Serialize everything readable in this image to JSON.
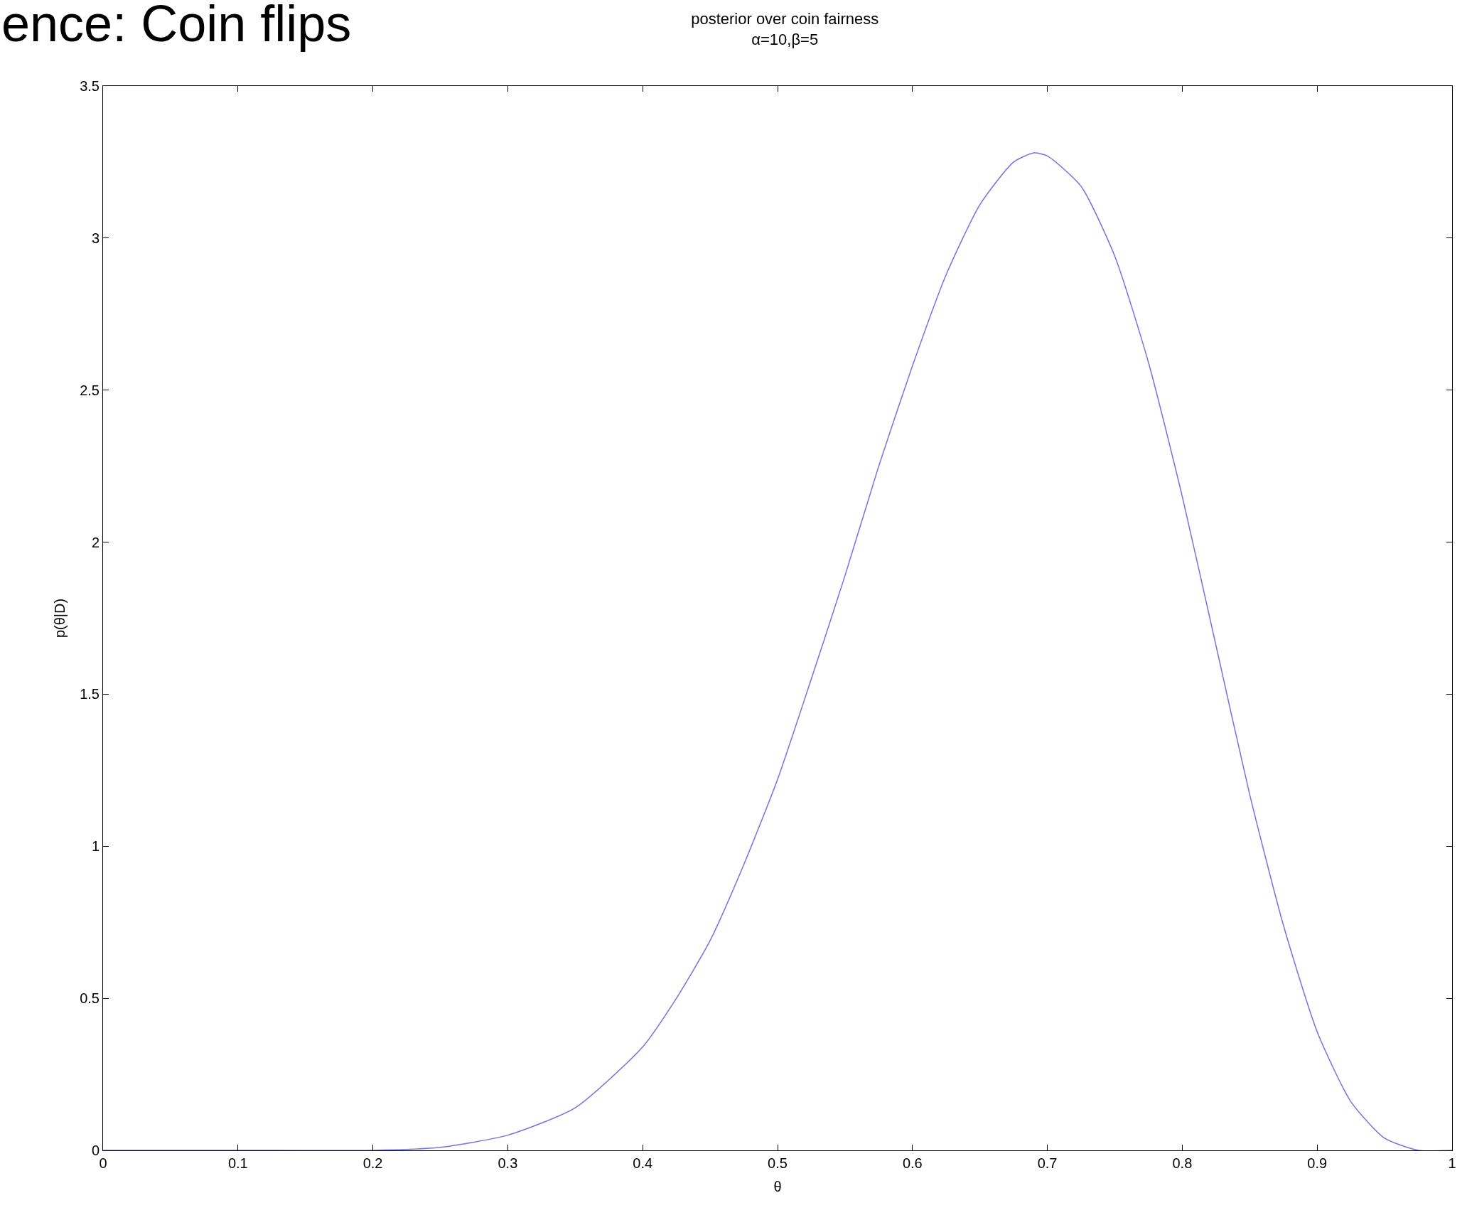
{
  "chart_data": {
    "type": "line",
    "title": "posterior over coin fairness",
    "subtitle": "α=10,β=5",
    "xlabel": "θ",
    "ylabel": "p(θ|D)",
    "annotations": [
      "ence: Coin flips"
    ],
    "x": [
      0,
      0.1,
      0.2,
      0.25,
      0.3,
      0.35,
      0.4,
      0.425,
      0.45,
      0.475,
      0.5,
      0.525,
      0.55,
      0.575,
      0.6,
      0.625,
      0.65,
      0.675,
      0.69,
      0.7,
      0.725,
      0.75,
      0.775,
      0.8,
      0.825,
      0.85,
      0.875,
      0.9,
      0.925,
      0.95,
      0.975,
      1
    ],
    "series": [
      {
        "color": "#7070ff",
        "values": [
          0,
          0,
          0,
          0.01,
          0.05,
          0.14,
          0.34,
          0.5,
          0.69,
          0.94,
          1.22,
          1.55,
          1.89,
          2.25,
          2.58,
          2.88,
          3.11,
          3.25,
          3.28,
          3.27,
          3.17,
          2.94,
          2.59,
          2.15,
          1.66,
          1.17,
          0.74,
          0.39,
          0.16,
          0.04,
          0,
          0
        ]
      }
    ],
    "xlim": [
      0,
      1
    ],
    "xticks": [
      0,
      0.1,
      0.2,
      0.3,
      0.4,
      0.5,
      0.6,
      0.7,
      0.8,
      0.9,
      1
    ],
    "ylim": [
      0,
      3.5
    ],
    "yticks": [
      0,
      0.5,
      1,
      1.5,
      2,
      2.5,
      3,
      3.5
    ],
    "marker": "none",
    "line_style": "solid"
  }
}
